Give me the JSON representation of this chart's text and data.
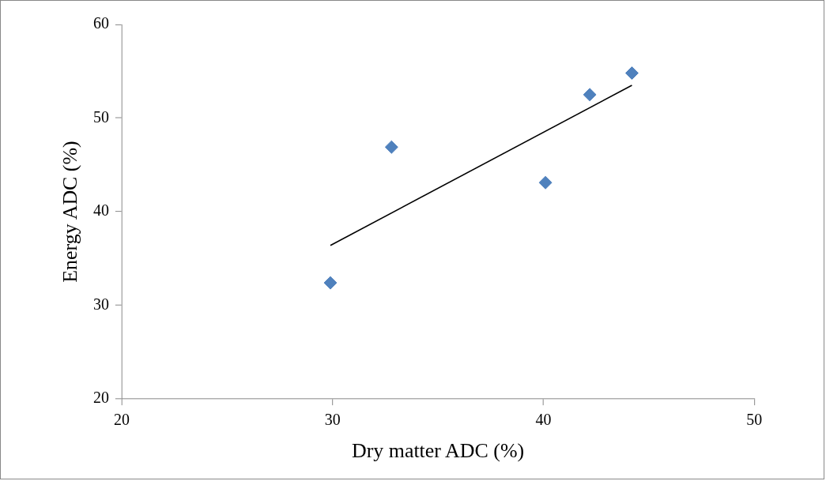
{
  "chart_data": {
    "type": "scatter",
    "xlabel": "Dry matter ADC (%)",
    "ylabel": "Energy ADC (%)",
    "xlim": [
      20,
      50
    ],
    "ylim": [
      20,
      60
    ],
    "xticks": [
      20,
      30,
      40,
      50
    ],
    "yticks": [
      20,
      30,
      40,
      50,
      60
    ],
    "marker": "diamond",
    "series": [
      {
        "type": "scatter",
        "color": "#4f81bd",
        "x": [
          29.9,
          32.8,
          40.1,
          42.2,
          44.2
        ],
        "values": [
          32.4,
          46.9,
          43.1,
          52.5,
          54.8
        ]
      },
      {
        "type": "line",
        "color": "#000000",
        "marker": "none",
        "x": [
          29.9,
          44.2
        ],
        "values": [
          36.4,
          53.5
        ]
      }
    ]
  }
}
